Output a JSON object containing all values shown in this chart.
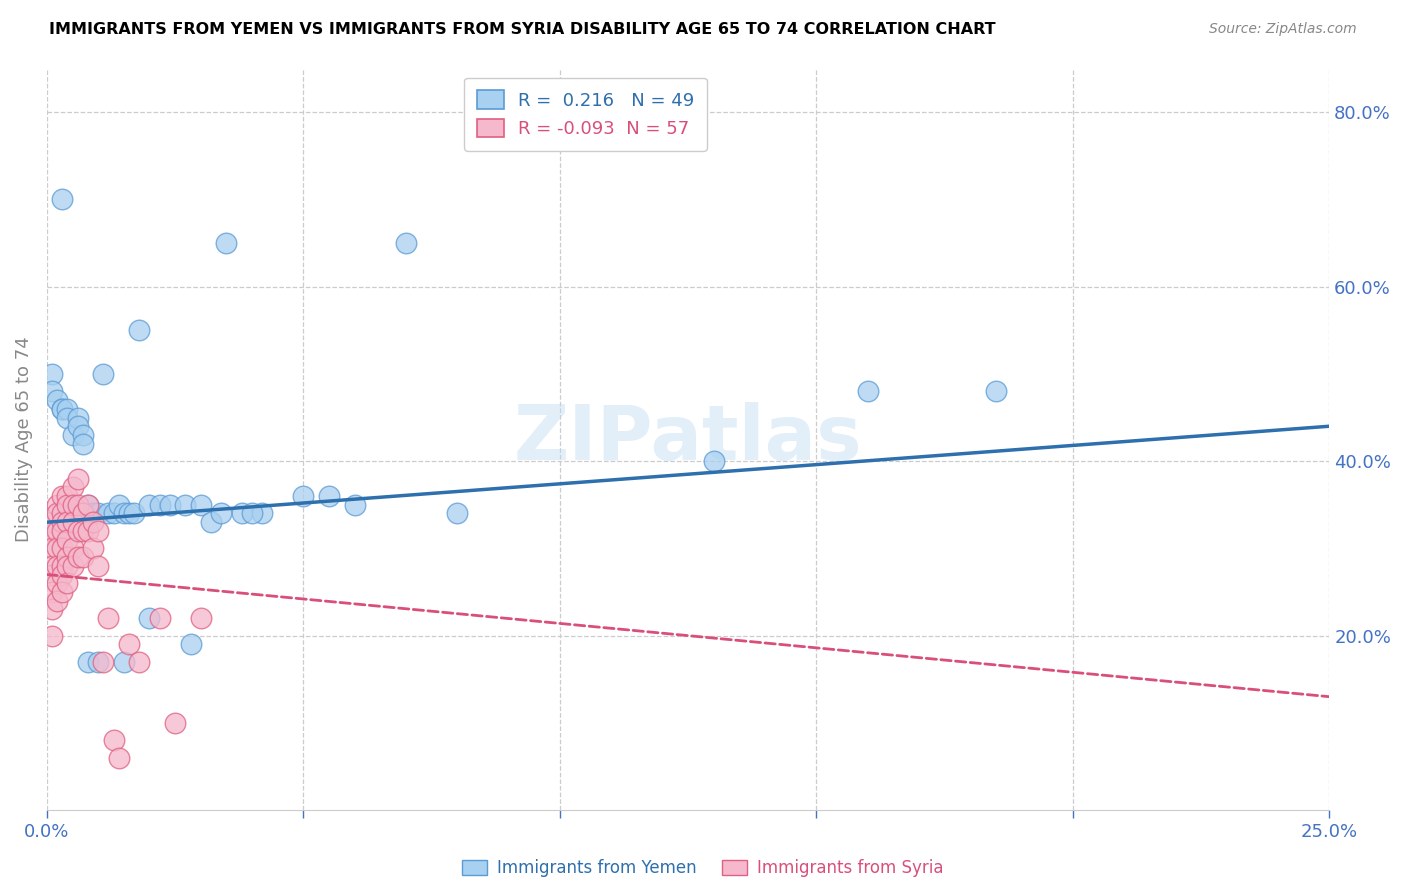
{
  "title": "IMMIGRANTS FROM YEMEN VS IMMIGRANTS FROM SYRIA DISABILITY AGE 65 TO 74 CORRELATION CHART",
  "source": "Source: ZipAtlas.com",
  "ylabel": "Disability Age 65 to 74",
  "xlim": [
    0.0,
    0.25
  ],
  "ylim": [
    0.0,
    0.85
  ],
  "xtick_positions": [
    0.0,
    0.05,
    0.1,
    0.15,
    0.2,
    0.25
  ],
  "xticklabels": [
    "0.0%",
    "",
    "",
    "",
    "",
    "25.0%"
  ],
  "yticks_right": [
    0.2,
    0.4,
    0.6,
    0.8
  ],
  "ytick_labels_right": [
    "20.0%",
    "40.0%",
    "60.0%",
    "80.0%"
  ],
  "legend1_label": "Immigrants from Yemen",
  "legend2_label": "Immigrants from Syria",
  "r_yemen": 0.216,
  "n_yemen": 49,
  "r_syria": -0.093,
  "n_syria": 57,
  "yemen_color": "#a8d0f0",
  "yemen_edge_color": "#5b9bd5",
  "yemen_line_color": "#2e6fad",
  "syria_color": "#f5b8cc",
  "syria_edge_color": "#e06080",
  "syria_line_color": "#d94f7a",
  "watermark": "ZIPatlas",
  "tick_color": "#4472C4",
  "yemen_x": [
    0.001,
    0.001,
    0.002,
    0.003,
    0.003,
    0.004,
    0.004,
    0.005,
    0.006,
    0.006,
    0.007,
    0.007,
    0.008,
    0.009,
    0.01,
    0.011,
    0.012,
    0.013,
    0.014,
    0.015,
    0.016,
    0.017,
    0.018,
    0.02,
    0.022,
    0.024,
    0.027,
    0.03,
    0.032,
    0.035,
    0.038,
    0.042,
    0.05,
    0.055,
    0.06,
    0.07,
    0.08,
    0.13,
    0.16,
    0.185,
    0.003,
    0.005,
    0.008,
    0.01,
    0.015,
    0.02,
    0.028,
    0.034,
    0.04
  ],
  "yemen_y": [
    0.5,
    0.48,
    0.47,
    0.46,
    0.46,
    0.46,
    0.45,
    0.43,
    0.45,
    0.44,
    0.43,
    0.42,
    0.35,
    0.34,
    0.34,
    0.5,
    0.34,
    0.34,
    0.35,
    0.34,
    0.34,
    0.34,
    0.55,
    0.35,
    0.35,
    0.35,
    0.35,
    0.35,
    0.33,
    0.65,
    0.34,
    0.34,
    0.36,
    0.36,
    0.35,
    0.65,
    0.34,
    0.4,
    0.48,
    0.48,
    0.7,
    0.35,
    0.17,
    0.17,
    0.17,
    0.22,
    0.19,
    0.34,
    0.34
  ],
  "syria_x": [
    0.001,
    0.001,
    0.001,
    0.001,
    0.001,
    0.001,
    0.001,
    0.001,
    0.002,
    0.002,
    0.002,
    0.002,
    0.002,
    0.002,
    0.002,
    0.003,
    0.003,
    0.003,
    0.003,
    0.003,
    0.003,
    0.003,
    0.003,
    0.004,
    0.004,
    0.004,
    0.004,
    0.004,
    0.004,
    0.004,
    0.005,
    0.005,
    0.005,
    0.005,
    0.005,
    0.006,
    0.006,
    0.006,
    0.006,
    0.007,
    0.007,
    0.007,
    0.008,
    0.008,
    0.009,
    0.009,
    0.01,
    0.01,
    0.011,
    0.012,
    0.013,
    0.014,
    0.016,
    0.018,
    0.022,
    0.025,
    0.03
  ],
  "syria_y": [
    0.33,
    0.32,
    0.3,
    0.28,
    0.27,
    0.25,
    0.23,
    0.2,
    0.35,
    0.34,
    0.32,
    0.3,
    0.28,
    0.26,
    0.24,
    0.36,
    0.34,
    0.33,
    0.32,
    0.3,
    0.28,
    0.27,
    0.25,
    0.36,
    0.35,
    0.33,
    0.31,
    0.29,
    0.28,
    0.26,
    0.37,
    0.35,
    0.33,
    0.3,
    0.28,
    0.38,
    0.35,
    0.32,
    0.29,
    0.34,
    0.32,
    0.29,
    0.35,
    0.32,
    0.33,
    0.3,
    0.32,
    0.28,
    0.17,
    0.22,
    0.08,
    0.06,
    0.19,
    0.17,
    0.22,
    0.1,
    0.22
  ],
  "yemen_trend_x": [
    0.0,
    0.25
  ],
  "yemen_trend_y": [
    0.33,
    0.44
  ],
  "syria_trend_x": [
    0.0,
    0.25
  ],
  "syria_trend_y": [
    0.27,
    0.13
  ]
}
